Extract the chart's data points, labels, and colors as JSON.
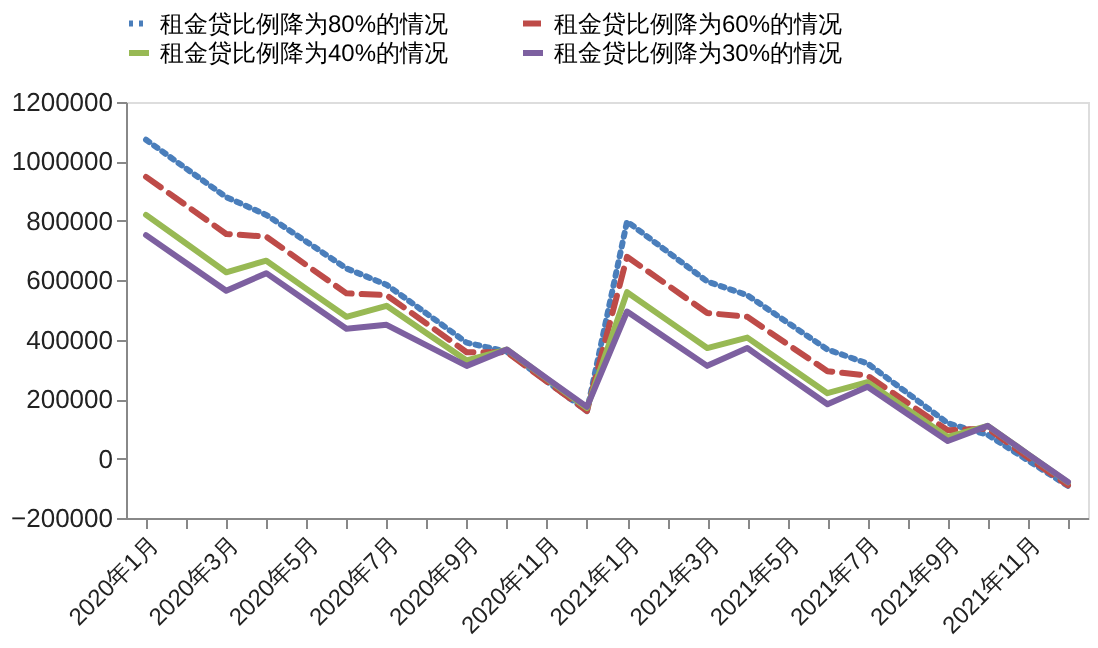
{
  "chart_data": {
    "type": "line",
    "categories": [
      "2020年1月",
      null,
      "2020年3月",
      null,
      "2020年5月",
      null,
      "2020年7月",
      null,
      "2020年9月",
      null,
      "2020年11月",
      null,
      "2021年1月",
      null,
      "2021年3月",
      null,
      "2021年5月",
      null,
      "2021年7月",
      null,
      "2021年9月",
      null,
      "2021年11月",
      null
    ],
    "series": [
      {
        "name": "租金贷比例降为80%的情况",
        "color": "#4a7ebb",
        "line_style": "dotted",
        "values": [
          1073000,
          976000,
          880000,
          820000,
          730000,
          640000,
          585000,
          488000,
          390000,
          360000,
          260000,
          160000,
          798000,
          697000,
          596000,
          550000,
          458000,
          367000,
          320000,
          220000,
          119000,
          80000,
          -6000,
          -92000
        ]
      },
      {
        "name": "租金贷比例降为60%的情况",
        "color": "#be4b48",
        "line_style": "dashed",
        "values": [
          948000,
          852000,
          756000,
          747000,
          651000,
          556000,
          550000,
          454000,
          358000,
          358000,
          259000,
          160000,
          679000,
          585000,
          490000,
          477000,
          385000,
          294000,
          279000,
          187000,
          95000,
          101000,
          4000,
          -90000
        ]
      },
      {
        "name": "租金贷比例降为40%的情况",
        "color": "#98b954",
        "line_style": "solid",
        "values": [
          820000,
          724000,
          627000,
          666000,
          571000,
          477000,
          514000,
          422000,
          330000,
          367000,
          268000,
          170000,
          560000,
          466000,
          372000,
          407000,
          313000,
          220000,
          257000,
          165000,
          73000,
          110000,
          15000,
          -80000
        ]
      },
      {
        "name": "租金贷比例降为30%的情况",
        "color": "#7d60a0",
        "line_style": "solid",
        "values": [
          752000,
          658000,
          565000,
          624000,
          530000,
          437000,
          450000,
          381000,
          312000,
          367000,
          270000,
          174000,
          495000,
          403000,
          312000,
          372000,
          277000,
          183000,
          242000,
          150000,
          59000,
          110000,
          15000,
          -79000
        ]
      }
    ],
    "ylim": [
      -200000,
      1200000
    ],
    "yticks": [
      -200000,
      0,
      200000,
      400000,
      600000,
      800000,
      1000000,
      1200000
    ],
    "grid": false,
    "legend": "top"
  }
}
